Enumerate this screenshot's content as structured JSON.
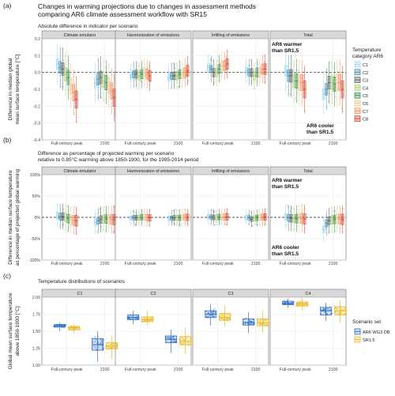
{
  "figure": {
    "title_lines": [
      "Changes in warming projections due to changes in assessment methods",
      "comparing AR6 climate assessment workflow with SR15"
    ]
  },
  "colors": {
    "C1": "#9fd5ee",
    "C2": "#3c89a8",
    "C3": "#565656",
    "C4": "#a9cf6a",
    "C5": "#2e8a4f",
    "C6": "#f7c48e",
    "C7": "#f08b5a",
    "C8": "#c8402a",
    "AR6 WG3 DB": "#2f6fc4",
    "SR1.5": "#e8b821",
    "strip": "#d9d9d9",
    "panel": "#ffffff",
    "grid": "#ebebeb"
  },
  "legend_temp": {
    "title_lines": [
      "Temperature",
      "category AR6"
    ],
    "items": [
      "C1",
      "C2",
      "C3",
      "C4",
      "C5",
      "C6",
      "C7",
      "C8"
    ]
  },
  "legend_scen": {
    "title": "Scenario set",
    "items": [
      "AR6 WG3 DB",
      "SR1.5"
    ]
  },
  "chart_data": [
    {
      "type": "boxplot",
      "panel_tag": "(a)",
      "subtitle": "Absolute difference in indicator per scenario",
      "ylabel_lines": [
        "Difference in median global",
        "mean surface temperature [°C]"
      ],
      "ylim": [
        -0.4,
        0.2
      ],
      "yticks": [
        0.2,
        0.1,
        0.0,
        -0.1,
        -0.2,
        -0.3,
        -0.4
      ],
      "ytick_labels": [
        "0.2",
        "0.1",
        "0.0",
        "-0.1",
        "-0.2",
        "-0.3",
        "-0.4"
      ],
      "facets": [
        "Climate emulator",
        "Harmonization of emissions",
        "Infilling of emissions",
        "Total"
      ],
      "x_categories": [
        "Full-century peak",
        "2100"
      ],
      "annotations": [
        {
          "facet": "Total",
          "lines": [
            "AR6 warmer",
            "than SR1.5"
          ],
          "position": "top-left"
        },
        {
          "facet": "Total",
          "lines": [
            "AR6 cooler",
            "than SR1.5"
          ],
          "position": "bottom-right"
        }
      ],
      "series": [
        {
          "facet": "Climate emulator",
          "x": "Full-century peak",
          "medians": [
            0.05,
            0.03,
            0.02,
            -0.01,
            -0.03,
            -0.08,
            -0.12,
            -0.16
          ]
        },
        {
          "facet": "Climate emulator",
          "x": "2100",
          "medians": [
            -0.06,
            -0.04,
            -0.03,
            -0.05,
            -0.06,
            -0.08,
            -0.11,
            -0.15
          ]
        },
        {
          "facet": "Harmonization of emissions",
          "x": "Full-century peak",
          "medians": [
            -0.02,
            -0.01,
            -0.01,
            -0.02,
            -0.01,
            0.0,
            -0.01,
            -0.02
          ]
        },
        {
          "facet": "Harmonization of emissions",
          "x": "2100",
          "medians": [
            -0.03,
            -0.02,
            -0.02,
            -0.02,
            -0.01,
            -0.01,
            0.0,
            0.01
          ]
        },
        {
          "facet": "Infilling of emissions",
          "x": "Full-century peak",
          "medians": [
            0.03,
            0.02,
            0.0,
            0.0,
            0.02,
            0.04,
            0.04,
            0.05
          ]
        },
        {
          "facet": "Infilling of emissions",
          "x": "2100",
          "medians": [
            0.01,
            0.0,
            0.0,
            -0.02,
            0.0,
            0.0,
            0.02,
            0.02
          ]
        },
        {
          "facet": "Total",
          "x": "Full-century peak",
          "medians": [
            0.01,
            -0.02,
            -0.02,
            -0.05,
            -0.05,
            -0.06,
            -0.06,
            -0.1
          ]
        },
        {
          "facet": "Total",
          "x": "2100",
          "medians": [
            -0.13,
            -0.1,
            -0.06,
            -0.06,
            -0.07,
            -0.06,
            -0.06,
            -0.1
          ]
        }
      ]
    },
    {
      "type": "boxplot",
      "panel_tag": "(b)",
      "subtitle_lines": [
        "Difference as percentage of projected warming per scenario",
        "relative to 0.85°C warming above 1850-1900, for the 1995-2014 period"
      ],
      "ylabel_lines": [
        "Difference in median surface temperature",
        "as percentage of projected global warming"
      ],
      "ylim": [
        -100,
        100
      ],
      "yticks": [
        100,
        50,
        0,
        -50,
        -100
      ],
      "ytick_labels": [
        "100%",
        "50%",
        "0%",
        "-50%",
        "-100%"
      ],
      "facets": [
        "Climate emulator",
        "Harmonization of emissions",
        "Infilling of emissions",
        "Total"
      ],
      "x_categories": [
        "Full-century peak",
        "2100"
      ],
      "annotations": [
        {
          "facet": "Total",
          "lines": [
            "AR6 warmer",
            "than SR1.5"
          ],
          "position": "top-left"
        },
        {
          "facet": "Total",
          "lines": [
            "AR6 cooler",
            "than SR1.5"
          ],
          "position": "bottom-left"
        }
      ],
      "series": [
        {
          "facet": "Climate emulator",
          "x": "Full-century peak",
          "medians": [
            4,
            2,
            2,
            0,
            -3,
            -6,
            -7,
            -8
          ]
        },
        {
          "facet": "Climate emulator",
          "x": "2100",
          "medians": [
            -12,
            -8,
            -5,
            -4,
            -4,
            -4,
            -5,
            -5
          ]
        },
        {
          "facet": "Harmonization of emissions",
          "x": "Full-century peak",
          "medians": [
            -2,
            -1,
            -1,
            -1,
            0,
            0,
            -1,
            -1
          ]
        },
        {
          "facet": "Harmonization of emissions",
          "x": "2100",
          "medians": [
            -3,
            -2,
            -1,
            -1,
            -1,
            0,
            0,
            0
          ]
        },
        {
          "facet": "Infilling of emissions",
          "x": "Full-century peak",
          "medians": [
            2,
            1,
            0,
            0,
            1,
            1,
            1,
            1
          ]
        },
        {
          "facet": "Infilling of emissions",
          "x": "2100",
          "medians": [
            0,
            -1,
            -4,
            -2,
            -1,
            0,
            1,
            1
          ]
        },
        {
          "facet": "Total",
          "x": "Full-century peak",
          "medians": [
            1,
            -1,
            -2,
            -3,
            -3,
            -3,
            -3,
            -4
          ]
        },
        {
          "facet": "Total",
          "x": "2100",
          "medians": [
            -28,
            -14,
            -8,
            -6,
            -5,
            -4,
            -4,
            -5
          ]
        }
      ]
    },
    {
      "type": "boxplot",
      "panel_tag": "(c)",
      "subtitle": "Temperature distributions of scenarios",
      "ylabel_lines": [
        "Global mean surface temperature",
        "above 1850-1900 [°C]"
      ],
      "ylim": [
        1.0,
        2.0
      ],
      "yticks": [
        2.0,
        1.75,
        1.5,
        1.25,
        1.0
      ],
      "ytick_labels": [
        "2.00",
        "1.75",
        "1.50",
        "1.25",
        "1.00"
      ],
      "facets": [
        "C1",
        "C2",
        "C3",
        "C4"
      ],
      "x_categories": [
        "Full-century peak",
        "2100"
      ],
      "series": [
        {
          "name": "AR6 WG3 DB",
          "facet": "C1",
          "x": "Full-century peak",
          "q1": 1.56,
          "median": 1.58,
          "q3": 1.6,
          "min": 1.5,
          "max": 1.63
        },
        {
          "name": "SR1.5",
          "facet": "C1",
          "x": "Full-century peak",
          "q1": 1.52,
          "median": 1.55,
          "q3": 1.57,
          "min": 1.47,
          "max": 1.6
        },
        {
          "name": "AR6 WG3 DB",
          "facet": "C1",
          "x": "2100",
          "q1": 1.22,
          "median": 1.3,
          "q3": 1.39,
          "min": 1.05,
          "max": 1.5
        },
        {
          "name": "SR1.5",
          "facet": "C1",
          "x": "2100",
          "q1": 1.24,
          "median": 1.28,
          "q3": 1.33,
          "min": 1.1,
          "max": 1.43
        },
        {
          "name": "AR6 WG3 DB",
          "facet": "C2",
          "x": "Full-century peak",
          "q1": 1.67,
          "median": 1.7,
          "q3": 1.74,
          "min": 1.6,
          "max": 1.8
        },
        {
          "name": "SR1.5",
          "facet": "C2",
          "x": "Full-century peak",
          "q1": 1.64,
          "median": 1.67,
          "q3": 1.71,
          "min": 1.58,
          "max": 1.8
        },
        {
          "name": "AR6 WG3 DB",
          "facet": "C2",
          "x": "2100",
          "q1": 1.33,
          "median": 1.38,
          "q3": 1.43,
          "min": 1.18,
          "max": 1.52
        },
        {
          "name": "SR1.5",
          "facet": "C2",
          "x": "2100",
          "q1": 1.3,
          "median": 1.35,
          "q3": 1.42,
          "min": 1.16,
          "max": 1.55
        },
        {
          "name": "AR6 WG3 DB",
          "facet": "C3",
          "x": "Full-century peak",
          "q1": 1.7,
          "median": 1.75,
          "q3": 1.8,
          "min": 1.58,
          "max": 1.9
        },
        {
          "name": "SR1.5",
          "facet": "C3",
          "x": "Full-century peak",
          "q1": 1.66,
          "median": 1.7,
          "q3": 1.76,
          "min": 1.57,
          "max": 1.88
        },
        {
          "name": "AR6 WG3 DB",
          "facet": "C3",
          "x": "2100",
          "q1": 1.59,
          "median": 1.63,
          "q3": 1.68,
          "min": 1.47,
          "max": 1.78
        },
        {
          "name": "SR1.5",
          "facet": "C3",
          "x": "2100",
          "q1": 1.58,
          "median": 1.62,
          "q3": 1.68,
          "min": 1.48,
          "max": 1.8
        },
        {
          "name": "AR6 WG3 DB",
          "facet": "C4",
          "x": "Full-century peak",
          "q1": 1.89,
          "median": 1.91,
          "q3": 1.94,
          "min": 1.84,
          "max": 1.98
        },
        {
          "name": "SR1.5",
          "facet": "C4",
          "x": "Full-century peak",
          "q1": 1.87,
          "median": 1.9,
          "q3": 1.93,
          "min": 1.8,
          "max": 1.99
        },
        {
          "name": "AR6 WG3 DB",
          "facet": "C4",
          "x": "2100",
          "q1": 1.74,
          "median": 1.8,
          "q3": 1.85,
          "min": 1.65,
          "max": 1.92
        },
        {
          "name": "SR1.5",
          "facet": "C4",
          "x": "2100",
          "q1": 1.74,
          "median": 1.8,
          "q3": 1.86,
          "min": 1.62,
          "max": 1.95
        }
      ]
    }
  ]
}
